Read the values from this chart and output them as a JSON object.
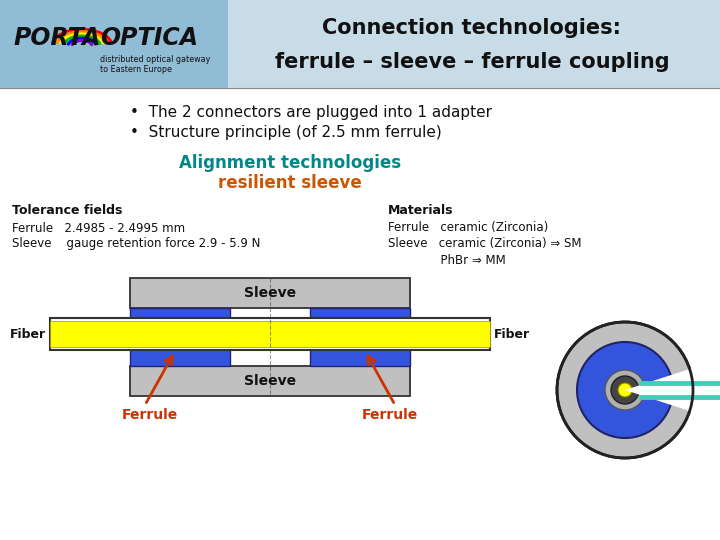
{
  "title_line1": "Connection technologies:",
  "title_line2": "ferrule – sleeve – ferrule coupling",
  "bg_color": "#ffffff",
  "bullet1": "The 2 connectors are plugged into 1 adapter",
  "bullet2": "Structure principle (of 2.5 mm ferrule)",
  "align_title": "Alignment technologies",
  "align_subtitle": "resilient sleeve",
  "tol_title": "Tolerance fields",
  "tol_line1": "Ferrule   2.4985 - 2.4995 mm",
  "tol_line2": "Sleeve    gauge retention force 2.9 - 5.9 N",
  "mat_title": "Materials",
  "mat_line1": "Ferrule   ceramic (Zirconia)",
  "mat_line2": "Sleeve   ceramic (Zirconia) ⇒ SM",
  "mat_line3": "              PhBr ⇒ MM",
  "sleeve_color": "#c0c0c0",
  "ferrule_color": "#3355dd",
  "fiber_color": "#ffff00",
  "arrow_color": "#cc3300",
  "label_color_ferrule": "#cc3300",
  "align_color": "#008888",
  "resilient_color": "#cc5500",
  "header_left_color": "#90bcd5",
  "header_right_color": "#c8dce8",
  "circle_gray": "#c0c0c0",
  "circle_blue": "#3355dd",
  "circle_inner_gray": "#b0b0b0",
  "circle_dark": "#444444",
  "circle_yellow": "#ffff00",
  "circle_cyan": "#44ccbb"
}
